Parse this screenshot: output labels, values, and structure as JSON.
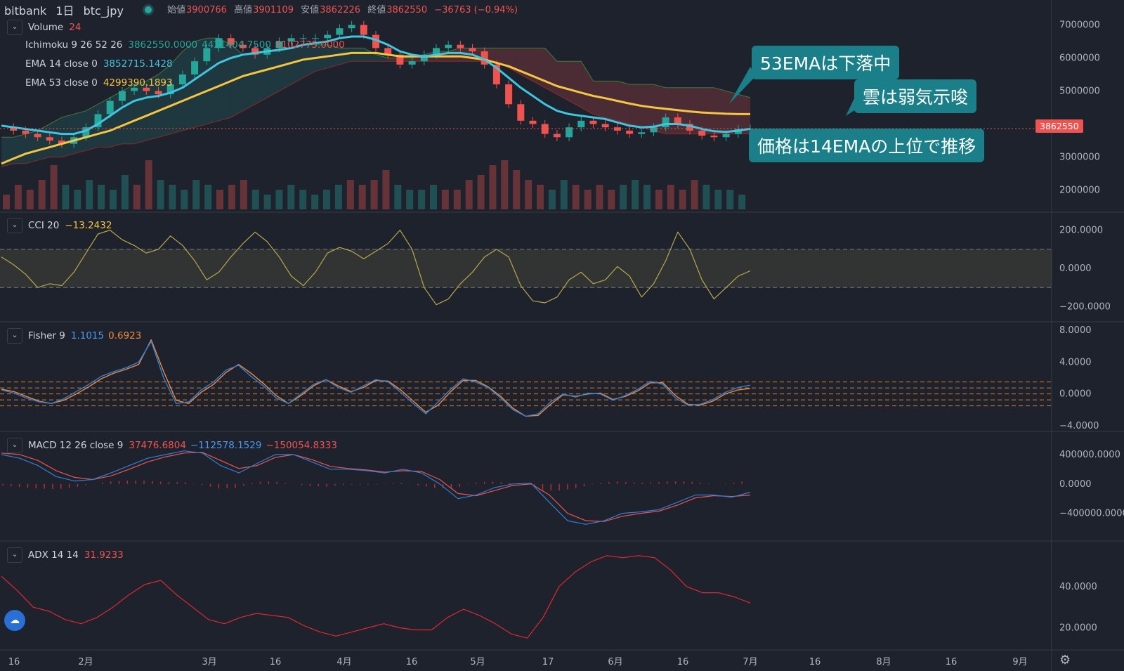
{
  "header": {
    "exchange": "bitbank",
    "interval": "1日",
    "symbol": "btc_jpy",
    "open_label": "始値",
    "open": "3900766",
    "high_label": "高値",
    "high": "3901109",
    "low_label": "安値",
    "low": "3862226",
    "close_label": "終値",
    "close": "3862550",
    "change": "−36763 (−0.94%)"
  },
  "legends": {
    "volume": {
      "name": "Volume",
      "value": "24"
    },
    "ichimoku": {
      "name": "Ichimoku 9 26 52 26",
      "v1": "3862550.0000",
      "v2": "4421404.7500",
      "v3": "5102775.0000"
    },
    "ema14": {
      "name": "EMA 14 close 0",
      "value": "3852715.1428"
    },
    "ema53": {
      "name": "EMA 53 close 0",
      "value": "4299390.1893"
    },
    "cci": {
      "name": "CCI 20",
      "value": "−13.2432"
    },
    "fisher": {
      "name": "Fisher 9",
      "v1": "1.1015",
      "v2": "0.6923"
    },
    "macd": {
      "name": "MACD 12 26 close 9",
      "v1": "37476.6804",
      "v2": "−112578.1529",
      "v3": "−150054.8333"
    },
    "adx": {
      "name": "ADX 14 14",
      "value": "31.9233"
    }
  },
  "callouts": {
    "ema53": "53EMAは下落中",
    "cloud": "雲は弱気示唆",
    "ema14": "価格は14EMAの上位で推移"
  },
  "price_tag": "3862550",
  "colors": {
    "background": "#1e222d",
    "up": "#26a69a",
    "down": "#ef5350",
    "ema14": "#3ec6e0",
    "ema53": "#f5c542",
    "cci": "#b8a84a",
    "fisher_main": "#2f7fd6",
    "fisher_trigger": "#f0883e",
    "macd_line": "#2f7fd6",
    "signal_line": "#ef5350",
    "adx": "#e0282e",
    "callout": "#1a7f88"
  },
  "icons": {
    "collapse": "chevron-down-icon",
    "logo": "tradingview-cloud-icon",
    "settings": "gear-icon"
  },
  "chart_data": [
    {
      "type": "candlestick",
      "title": "bitbank 1日 btc_jpy",
      "x_tick_labels": [
        "16",
        "2月",
        "3月",
        "16",
        "4月",
        "16",
        "5月",
        "17",
        "6月",
        "16",
        "7月",
        "16",
        "8月",
        "16",
        "9月"
      ],
      "ylim": [
        1500000,
        7500000
      ],
      "y_tick_labels": [
        "7000000",
        "6000000",
        "5000000",
        "3000000",
        "2000000"
      ],
      "close_path": [
        3900000,
        3800000,
        3700000,
        3600000,
        3500000,
        3400000,
        3600000,
        3900000,
        4300000,
        4700000,
        5000000,
        5100000,
        5000000,
        4900000,
        5200000,
        5500000,
        5900000,
        6300000,
        6600000,
        6400000,
        6300000,
        6100000,
        6300000,
        6500000,
        6600000,
        6600000,
        6600000,
        6700000,
        6900000,
        7000000,
        6700000,
        6300000,
        6100000,
        5800000,
        5900000,
        6100000,
        6300000,
        6400000,
        6300000,
        6200000,
        5800000,
        5200000,
        4600000,
        4100000,
        4000000,
        3700000,
        3600000,
        3900000,
        4100000,
        4000000,
        3900000,
        3800000,
        3700000,
        3750000,
        3900000,
        4200000,
        4000000,
        3800000,
        3650000,
        3600000,
        3700000,
        3850000,
        3862550
      ],
      "ema14_path": [
        3950000,
        3900000,
        3850000,
        3800000,
        3750000,
        3700000,
        3700000,
        3800000,
        4000000,
        4250000,
        4500000,
        4700000,
        4800000,
        4850000,
        4950000,
        5100000,
        5350000,
        5600000,
        5850000,
        6000000,
        6100000,
        6150000,
        6200000,
        6250000,
        6300000,
        6400000,
        6450000,
        6500000,
        6600000,
        6650000,
        6650000,
        6550000,
        6400000,
        6200000,
        6100000,
        6050000,
        6100000,
        6150000,
        6150000,
        6100000,
        5950000,
        5700000,
        5400000,
        5100000,
        4850000,
        4600000,
        4400000,
        4300000,
        4250000,
        4200000,
        4150000,
        4050000,
        3950000,
        3900000,
        3920000,
        4000000,
        4000000,
        3950000,
        3850000,
        3780000,
        3760000,
        3800000,
        3852715
      ],
      "ema53_path": [
        2800000,
        2950000,
        3100000,
        3200000,
        3300000,
        3400000,
        3500000,
        3600000,
        3700000,
        3800000,
        3950000,
        4100000,
        4250000,
        4400000,
        4550000,
        4700000,
        4850000,
        5000000,
        5150000,
        5300000,
        5450000,
        5550000,
        5650000,
        5750000,
        5850000,
        5950000,
        6000000,
        6050000,
        6100000,
        6150000,
        6150000,
        6150000,
        6100000,
        6050000,
        6050000,
        6050000,
        6050000,
        6050000,
        6050000,
        6000000,
        5950000,
        5850000,
        5750000,
        5600000,
        5450000,
        5300000,
        5150000,
        5050000,
        4950000,
        4850000,
        4780000,
        4700000,
        4620000,
        4550000,
        4500000,
        4460000,
        4420000,
        4380000,
        4350000,
        4330000,
        4310000,
        4300000,
        4299390
      ],
      "cloud_top_path": [
        3600000,
        3600000,
        3700000,
        3800000,
        4000000,
        4200000,
        4300000,
        4400000,
        4600000,
        4800000,
        5000000,
        5200000,
        5300000,
        5500000,
        5800000,
        6200000,
        6500000,
        6600000,
        6600000,
        6400000,
        6100000,
        6100000,
        6200000,
        6200000,
        6300000,
        6400000,
        6400000,
        6400000,
        6300000,
        6300000,
        6300000,
        6100000,
        6000000,
        6000000,
        6000000,
        6100000,
        6200000,
        6200000,
        6300000,
        6300000,
        6300000,
        6300000,
        6300000,
        6300000,
        6300000,
        6300000,
        5900000,
        5900000,
        5900000,
        5300000,
        5300000,
        5300000,
        5200000,
        5200000,
        5200000,
        5100000,
        5100000,
        5100000,
        5100000,
        5100000,
        5000000,
        4900000,
        4800000
      ],
      "cloud_bottom_path": [
        2700000,
        2800000,
        2800000,
        2900000,
        3000000,
        3000000,
        3100000,
        3200000,
        3300000,
        3300000,
        3400000,
        3400000,
        3500000,
        3600000,
        3700000,
        3800000,
        3900000,
        4000000,
        4100000,
        4200000,
        4400000,
        4600000,
        4800000,
        5000000,
        5200000,
        5400000,
        5600000,
        5700000,
        5800000,
        5900000,
        5900000,
        5900000,
        5900000,
        5900000,
        5900000,
        5900000,
        5900000,
        5900000,
        5900000,
        5900000,
        5900000,
        5900000,
        5700000,
        5500000,
        5300000,
        5100000,
        4900000,
        4700000,
        4500000,
        4300000,
        4200000,
        4100000,
        4000000,
        3900000,
        3800000,
        3700000,
        3700000,
        3700000,
        3700000,
        3700000,
        3700000,
        3700000,
        3700000
      ],
      "volume_scale": [
        0.3,
        0.5,
        0.4,
        0.6,
        0.9,
        0.5,
        0.4,
        0.6,
        0.5,
        0.4,
        0.7,
        0.5,
        1.0,
        0.6,
        0.5,
        0.4,
        0.6,
        0.5,
        0.4,
        0.5,
        0.6,
        0.4,
        0.3,
        0.4,
        0.5,
        0.4,
        0.3,
        0.4,
        0.5,
        0.6,
        0.5,
        0.6,
        0.8,
        0.5,
        0.4,
        0.4,
        0.5,
        0.4,
        0.4,
        0.6,
        0.7,
        0.9,
        1.0,
        0.8,
        0.6,
        0.5,
        0.4,
        0.6,
        0.5,
        0.4,
        0.5,
        0.4,
        0.5,
        0.6,
        0.5,
        0.4,
        0.5,
        0.4,
        0.6,
        0.5,
        0.4,
        0.4,
        0.3
      ]
    },
    {
      "type": "line",
      "title": "CCI 20",
      "ylim": [
        -250,
        250
      ],
      "y_tick_labels": [
        "200.0000",
        "0.0000",
        "−200.0000"
      ],
      "band": [
        -100,
        100
      ],
      "values": [
        60,
        20,
        -30,
        -100,
        -80,
        -90,
        -20,
        80,
        180,
        200,
        150,
        120,
        80,
        100,
        170,
        120,
        40,
        -60,
        -20,
        60,
        130,
        190,
        140,
        60,
        -40,
        -90,
        -20,
        80,
        110,
        90,
        50,
        90,
        130,
        200,
        100,
        -100,
        -190,
        -160,
        -80,
        -20,
        60,
        100,
        60,
        -90,
        -170,
        -180,
        -150,
        -60,
        -20,
        -80,
        -60,
        10,
        -40,
        -150,
        -80,
        40,
        190,
        100,
        -60,
        -160,
        -100,
        -40,
        -13
      ]
    },
    {
      "type": "line",
      "title": "Fisher 9",
      "ylim": [
        -4,
        8
      ],
      "y_tick_labels": [
        "8.0000",
        "4.0000",
        "0.0000",
        "−4.0000"
      ],
      "levels": [
        1.5,
        0.75,
        0,
        -0.75,
        -1.5
      ],
      "series": [
        {
          "name": "1.1015",
          "values": [
            0.5,
            0.1,
            -0.5,
            -1.0,
            -1.2,
            -0.6,
            0.3,
            1.2,
            2.2,
            2.8,
            3.3,
            4.0,
            6.6,
            2.0,
            -1.2,
            -1.0,
            0.5,
            1.5,
            3.0,
            3.6,
            2.2,
            1.0,
            -0.5,
            -1.2,
            0.0,
            1.2,
            1.8,
            0.8,
            0.2,
            1.0,
            1.8,
            1.5,
            0.2,
            -1.2,
            -2.5,
            -1.0,
            0.6,
            1.9,
            1.5,
            0.8,
            -0.5,
            -2.0,
            -2.8,
            -2.5,
            -1.0,
            0.0,
            -0.4,
            0.1,
            0.0,
            -0.8,
            -0.2,
            0.6,
            1.6,
            1.2,
            -0.5,
            -1.4,
            -1.3,
            -0.7,
            0.2,
            0.8,
            1.1
          ]
        },
        {
          "name": "0.6923",
          "values": [
            0.6,
            0.3,
            -0.3,
            -0.9,
            -1.2,
            -0.8,
            0.0,
            0.9,
            1.9,
            2.6,
            3.1,
            3.7,
            6.8,
            2.8,
            -0.8,
            -1.2,
            0.2,
            1.2,
            2.7,
            3.7,
            2.6,
            1.3,
            -0.2,
            -1.2,
            -0.2,
            1.0,
            1.8,
            1.0,
            0.3,
            0.8,
            1.7,
            1.6,
            0.5,
            -0.9,
            -2.3,
            -1.4,
            0.3,
            1.7,
            1.7,
            0.9,
            -0.3,
            -1.8,
            -2.8,
            -2.7,
            -1.3,
            -0.1,
            -0.3,
            0.0,
            0.1,
            -0.7,
            -0.3,
            0.4,
            1.4,
            1.4,
            -0.2,
            -1.3,
            -1.4,
            -0.9,
            0.0,
            0.5,
            0.69
          ]
        }
      ]
    },
    {
      "type": "line",
      "title": "MACD 12 26 close 9",
      "ylim": [
        -700000,
        600000
      ],
      "y_tick_labels": [
        "400000.0000",
        "0.0000",
        "−400000.0000"
      ],
      "series": [
        {
          "name": "−112578.1529",
          "values": [
            400000,
            350000,
            250000,
            100000,
            40000,
            60000,
            150000,
            250000,
            350000,
            400000,
            450000,
            420000,
            250000,
            150000,
            280000,
            400000,
            400000,
            300000,
            200000,
            200000,
            180000,
            150000,
            200000,
            150000,
            0,
            -200000,
            -150000,
            -50000,
            0,
            10000,
            -250000,
            -500000,
            -550000,
            -500000,
            -400000,
            -380000,
            -350000,
            -250000,
            -150000,
            -150000,
            -180000,
            -112578
          ]
        },
        {
          "name": "−150054.8333",
          "values": [
            420000,
            400000,
            320000,
            180000,
            90000,
            60000,
            110000,
            200000,
            300000,
            370000,
            420000,
            430000,
            320000,
            210000,
            250000,
            360000,
            400000,
            330000,
            240000,
            210000,
            190000,
            160000,
            180000,
            170000,
            60000,
            -130000,
            -160000,
            -90000,
            -20000,
            0,
            -150000,
            -400000,
            -500000,
            -510000,
            -440000,
            -400000,
            -370000,
            -290000,
            -190000,
            -160000,
            -170000,
            -150055
          ]
        }
      ],
      "histogram_value": "37476.6804"
    },
    {
      "type": "line",
      "title": "ADX 14 14",
      "ylim": [
        12,
        58
      ],
      "y_tick_labels": [
        "40.0000",
        "20.0000"
      ],
      "values": [
        45,
        38,
        30,
        28,
        24,
        22,
        25,
        30,
        36,
        41,
        43,
        36,
        30,
        24,
        22,
        25,
        27,
        26,
        25,
        21,
        18,
        16,
        18,
        20,
        22,
        20,
        19,
        19,
        25,
        29,
        26,
        22,
        17,
        15,
        25,
        40,
        47,
        52,
        55,
        54,
        55,
        54,
        48,
        40,
        37,
        37,
        35,
        32
      ]
    }
  ]
}
